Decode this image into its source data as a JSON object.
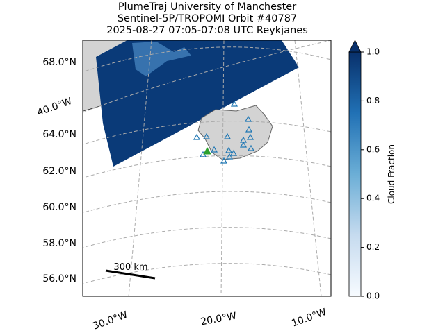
{
  "title": [
    "PlumeTraj    University of Manchester",
    "Sentinel-5P/TROPOMI Orbit #40787",
    "2025-08-27   07:05-07:08 UTC   Reykjanes"
  ],
  "latitude_labels": [
    "68.0°N",
    "64.0°N",
    "62.0°N",
    "60.0°N",
    "58.0°N",
    "56.0°N"
  ],
  "longitude_labels": [
    "40.0°W",
    "30.0°W",
    "20.0°W",
    "10.0°W"
  ],
  "scale_bar": "300 km",
  "colorbar": {
    "label": "Cloud Fraction",
    "lim": [
      0,
      1
    ],
    "ticks": [
      {
        "value": 0,
        "label": "0.0"
      },
      0.2,
      0.4,
      0.6,
      0.8,
      {
        "value": 1,
        "label": "1.0"
      }
    ]
  }
}
